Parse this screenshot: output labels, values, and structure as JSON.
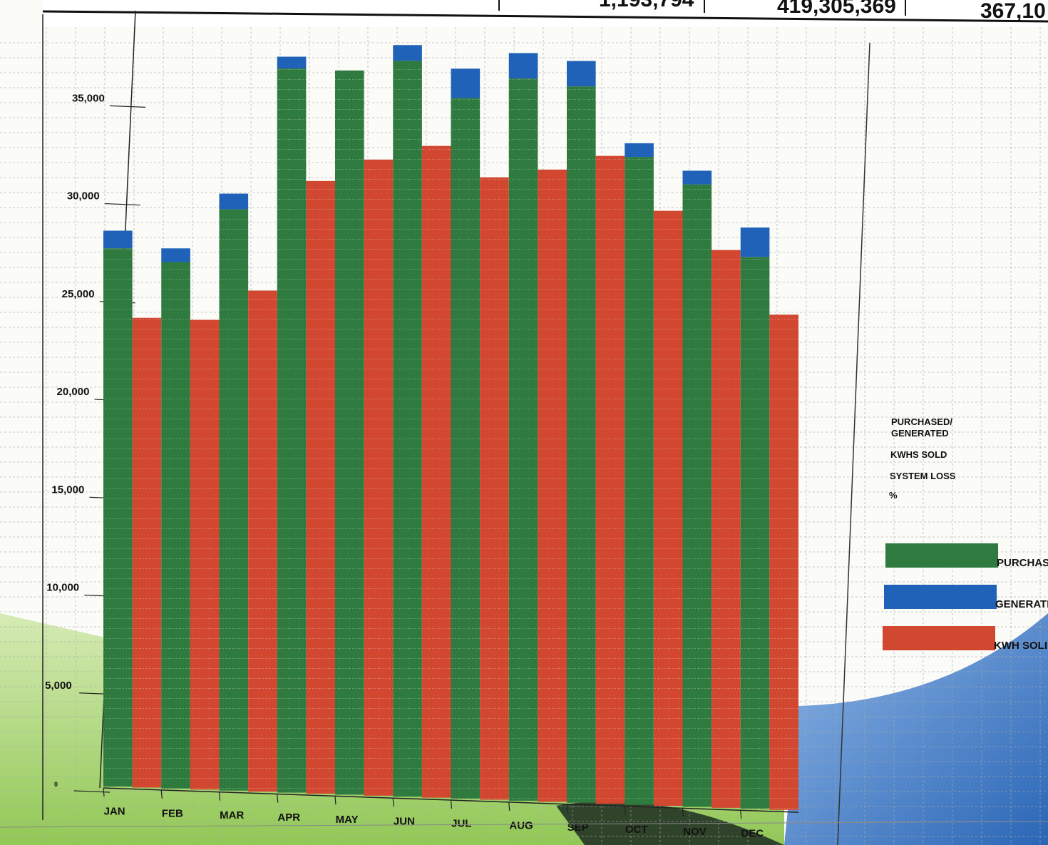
{
  "top_values": {
    "value_1": "1,193,794",
    "value_2": "419,305,369",
    "value_3": "367,10"
  },
  "legend": {
    "labels": [
      "PURCHASED/ GENERATED",
      "KWHS SOLD",
      "SYSTEM LOSS",
      "%"
    ],
    "swatch_labels": [
      "PURCHASI",
      "GENERATI",
      "KWH SOLI"
    ]
  },
  "colors": {
    "purchased": "#2f7a3f",
    "generated": "#1f62b8",
    "kwh_sold": "#d2472f",
    "grid": "#a9a9a9",
    "wave_green": "#7fbf3a",
    "wave_blue": "#2a66b6"
  },
  "chart_data": {
    "type": "bar",
    "categories": [
      "JAN",
      "FEB",
      "MAR",
      "APR",
      "MAY",
      "JUN",
      "JUL",
      "AUG",
      "SEP",
      "OCT",
      "NOV",
      "DEC"
    ],
    "y_ticks": [
      "0",
      "5,000",
      "10,000",
      "15,000",
      "20,000",
      "25,000",
      "30,000",
      "35,000"
    ],
    "ylim": [
      0,
      38000
    ],
    "grid": true,
    "legend_position": "right",
    "series": [
      {
        "name": "PURCHASI",
        "values": [
          27500,
          26900,
          29700,
          37000,
          37000,
          37600,
          35800,
          36900,
          36600,
          33100,
          31800,
          28200
        ]
      },
      {
        "name": "GENERATI",
        "values": [
          900,
          700,
          800,
          600,
          0,
          800,
          1500,
          1300,
          1300,
          700,
          700,
          1500
        ]
      },
      {
        "name": "KWH SOLI",
        "values": [
          24000,
          24000,
          25600,
          31300,
          32500,
          33300,
          31800,
          32300,
          33100,
          30400,
          28500,
          25300
        ]
      }
    ]
  }
}
